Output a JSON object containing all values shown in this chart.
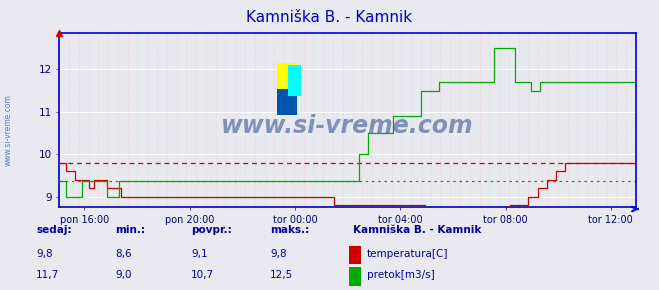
{
  "title": "Kamniška B. - Kamnik",
  "bg_color": "#e8eaf0",
  "plot_bg_color": "#e8eaf0",
  "grid_color_v": "#ddddee",
  "grid_color_h": "#ffffff",
  "x_axis_color": "#0000cc",
  "y_axis_color": "#0000cc",
  "tick_color": "#000080",
  "title_color": "#0000cc",
  "label_color": "#0000aa",
  "temp_color": "#cc0000",
  "flow_color": "#00aa00",
  "watermark": "www.si-vreme.com",
  "watermark_color": "#1a3a8a",
  "watermark_side": "www.si-vreme.com",
  "watermark_side_color": "#4466bb",
  "x_labels": [
    "pon 16:00",
    "pon 20:00",
    "tor 00:00",
    "tor 04:00",
    "tor 08:00",
    "tor 12:00"
  ],
  "ylim_min": 8.75,
  "ylim_max": 12.85,
  "y_ticks": [
    9,
    10,
    11,
    12
  ],
  "temp_avg": 9.8,
  "flow_avg_scaled": 9.37,
  "sedaj_label": "sedaj:",
  "min_label": "min.:",
  "povpr_label": "povpr.:",
  "maks_label": "maks.:",
  "station_label": "Kamniška B. - Kamnik",
  "temp_label": "temperatura[C]",
  "flow_label": "pretok[m3/s]",
  "temp_sedaj": "9,8",
  "temp_min": "8,6",
  "temp_povpr": "9,1",
  "temp_maks": "9,8",
  "flow_sedaj": "11,7",
  "flow_min": "9,0",
  "flow_povpr": "10,7",
  "flow_maks": "12,5",
  "temp_data": [
    9.8,
    9.8,
    9.8,
    9.6,
    9.6,
    9.6,
    9.6,
    9.4,
    9.4,
    9.4,
    9.4,
    9.4,
    9.4,
    9.2,
    9.2,
    9.4,
    9.4,
    9.4,
    9.4,
    9.4,
    9.4,
    9.2,
    9.2,
    9.2,
    9.2,
    9.2,
    9.2,
    9.0,
    9.0,
    9.0,
    9.0,
    9.0,
    9.0,
    9.0,
    9.0,
    9.0,
    9.0,
    9.0,
    9.0,
    9.0,
    9.0,
    9.0,
    9.0,
    9.0,
    9.0,
    9.0,
    9.0,
    9.0,
    9.0,
    9.0,
    9.0,
    9.0,
    9.0,
    9.0,
    9.0,
    9.0,
    9.0,
    9.0,
    9.0,
    9.0,
    9.0,
    9.0,
    9.0,
    9.0,
    9.0,
    9.0,
    9.0,
    9.0,
    9.0,
    9.0,
    9.0,
    9.0,
    9.0,
    9.0,
    9.0,
    9.0,
    9.0,
    9.0,
    9.0,
    9.0,
    9.0,
    9.0,
    9.0,
    9.0,
    9.0,
    9.0,
    9.0,
    9.0,
    9.0,
    9.0,
    9.0,
    9.0,
    9.0,
    9.0,
    9.0,
    9.0,
    9.0,
    9.0,
    9.0,
    9.0,
    9.0,
    9.0,
    9.0,
    9.0,
    9.0,
    9.0,
    9.0,
    9.0,
    9.0,
    9.0,
    9.0,
    9.0,
    9.0,
    9.0,
    9.0,
    9.0,
    9.0,
    9.0,
    9.0,
    9.0,
    8.8,
    8.8,
    8.8,
    8.8,
    8.8,
    8.8,
    8.8,
    8.8,
    8.8,
    8.8,
    8.8,
    8.8,
    8.8,
    8.8,
    8.8,
    8.8,
    8.8,
    8.8,
    8.8,
    8.8,
    8.8,
    8.8,
    8.8,
    8.8,
    8.8,
    8.8,
    8.8,
    8.8,
    8.8,
    8.8,
    8.8,
    8.8,
    8.8,
    8.8,
    8.8,
    8.8,
    8.8,
    8.8,
    8.8,
    8.8,
    8.6,
    8.6,
    8.6,
    8.6,
    8.6,
    8.6,
    8.6,
    8.6,
    8.6,
    8.6,
    8.6,
    8.6,
    8.6,
    8.6,
    8.6,
    8.6,
    8.6,
    8.6,
    8.6,
    8.6,
    8.6,
    8.6,
    8.6,
    8.6,
    8.6,
    8.6,
    8.6,
    8.6,
    8.6,
    8.6,
    8.6,
    8.6,
    8.6,
    8.6,
    8.6,
    8.6,
    8.6,
    8.8,
    8.8,
    8.8,
    8.8,
    8.8,
    8.8,
    8.8,
    8.8,
    9.0,
    9.0,
    9.0,
    9.0,
    9.2,
    9.2,
    9.2,
    9.2,
    9.4,
    9.4,
    9.4,
    9.4,
    9.6,
    9.6,
    9.6,
    9.6,
    9.8,
    9.8,
    9.8,
    9.8,
    9.8,
    9.8,
    9.8,
    9.8,
    9.8,
    9.8,
    9.8,
    9.8,
    9.8,
    9.8,
    9.8,
    9.8,
    9.8,
    9.8,
    9.8,
    9.8,
    9.8,
    9.8,
    9.8,
    9.8,
    9.8,
    9.8,
    9.8,
    9.8,
    9.8,
    9.8,
    9.8,
    9.8
  ],
  "flow_data": [
    9.37,
    9.37,
    9.37,
    9.0,
    9.0,
    9.0,
    9.0,
    9.0,
    9.0,
    9.0,
    9.37,
    9.37,
    9.37,
    9.37,
    9.37,
    9.37,
    9.37,
    9.37,
    9.37,
    9.37,
    9.37,
    9.0,
    9.0,
    9.0,
    9.0,
    9.0,
    9.37,
    9.37,
    9.37,
    9.37,
    9.37,
    9.37,
    9.37,
    9.37,
    9.37,
    9.37,
    9.37,
    9.37,
    9.37,
    9.37,
    9.37,
    9.37,
    9.37,
    9.37,
    9.37,
    9.37,
    9.37,
    9.37,
    9.37,
    9.37,
    9.37,
    9.37,
    9.37,
    9.37,
    9.37,
    9.37,
    9.37,
    9.37,
    9.37,
    9.37,
    9.37,
    9.37,
    9.37,
    9.37,
    9.37,
    9.37,
    9.37,
    9.37,
    9.37,
    9.37,
    9.37,
    9.37,
    9.37,
    9.37,
    9.37,
    9.37,
    9.37,
    9.37,
    9.37,
    9.37,
    9.37,
    9.37,
    9.37,
    9.37,
    9.37,
    9.37,
    9.37,
    9.37,
    9.37,
    9.37,
    9.37,
    9.37,
    9.37,
    9.37,
    9.37,
    9.37,
    9.37,
    9.37,
    9.37,
    9.37,
    9.37,
    9.37,
    9.37,
    9.37,
    9.37,
    9.37,
    9.37,
    9.37,
    9.37,
    9.37,
    9.37,
    9.37,
    9.37,
    9.37,
    9.37,
    9.37,
    9.37,
    9.37,
    9.37,
    9.37,
    9.37,
    9.37,
    9.37,
    9.37,
    9.37,
    9.37,
    9.37,
    9.37,
    9.37,
    9.37,
    9.37,
    10.0,
    10.0,
    10.0,
    10.0,
    10.5,
    10.5,
    10.5,
    10.5,
    10.5,
    10.5,
    10.5,
    10.5,
    10.5,
    10.5,
    10.5,
    10.9,
    10.9,
    10.9,
    10.9,
    10.9,
    10.9,
    10.9,
    10.9,
    10.9,
    10.9,
    10.9,
    10.9,
    11.5,
    11.5,
    11.5,
    11.5,
    11.5,
    11.5,
    11.5,
    11.5,
    11.7,
    11.7,
    11.7,
    11.7,
    11.7,
    11.7,
    11.7,
    11.7,
    11.7,
    11.7,
    11.7,
    11.7,
    11.7,
    11.7,
    11.7,
    11.7,
    11.7,
    11.7,
    11.7,
    11.7,
    11.7,
    11.7,
    11.7,
    11.7,
    12.5,
    12.5,
    12.5,
    12.5,
    12.5,
    12.5,
    12.5,
    12.5,
    12.5,
    11.7,
    11.7,
    11.7,
    11.7,
    11.7,
    11.7,
    11.7,
    11.5,
    11.5,
    11.5,
    11.5,
    11.7,
    11.7,
    11.7,
    11.7,
    11.7,
    11.7,
    11.7,
    11.7,
    11.7,
    11.7,
    11.7,
    11.7,
    11.7,
    11.7,
    11.7,
    11.7,
    11.7,
    11.7,
    11.7,
    11.7,
    11.7,
    11.7,
    11.7,
    11.7,
    11.7,
    11.7,
    11.7,
    11.7,
    11.7,
    11.7,
    11.7,
    11.7,
    11.7,
    11.7,
    11.7,
    11.7,
    11.7,
    11.7,
    11.7,
    11.7,
    11.7,
    11.7,
    11.7
  ]
}
